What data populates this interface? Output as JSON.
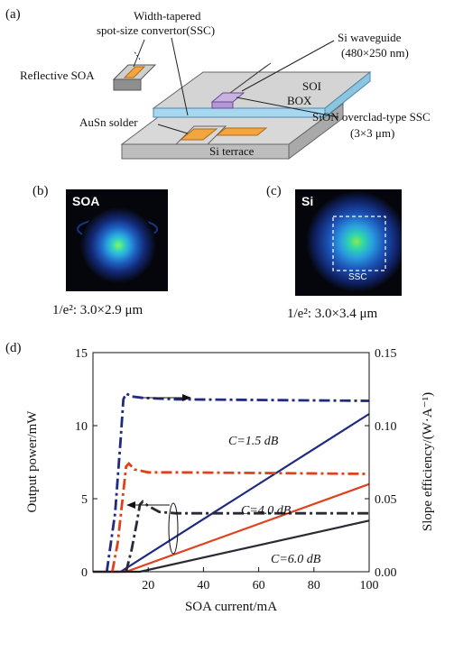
{
  "figure": {
    "panel_a": {
      "label": "(a)",
      "labels": {
        "ssc_top": "Width-tapered",
        "ssc_bottom": "spot-size convertor(SSC)",
        "soa": "Reflective SOA",
        "si_wg_top": "Si waveguide",
        "si_wg_bottom": "(480×250 nm)",
        "soi": "SOI",
        "box": "BOX",
        "sion_top": "SiON overclad-type SSC",
        "sion_bottom": "(3×3 μm)",
        "ausn": "AuSn solder",
        "terrace": "Si terrace"
      }
    },
    "panel_b": {
      "label": "(b)",
      "image_tag": "SOA",
      "caption": "1/e²: 3.0×2.9  μm"
    },
    "panel_c": {
      "label": "(c)",
      "image_tag": "Si",
      "box_tag": "SSC",
      "caption": "1/e²: 3.0×3.4  μm"
    },
    "panel_d": {
      "label": "(d)"
    }
  },
  "chart_data": {
    "type": "line",
    "xlabel": "SOA current/mA",
    "ylabel": "Output power/mW",
    "y2label": "Slope efficiency/(W·A⁻¹)",
    "xlim": [
      0,
      100
    ],
    "ylim": [
      0,
      15
    ],
    "y2lim": [
      0,
      0.15
    ],
    "x_ticks": [
      "20",
      "40",
      "60",
      "80",
      "100"
    ],
    "y_ticks": [
      "0",
      "5",
      "10",
      "15"
    ],
    "y2_ticks": [
      "0.00",
      "0.05",
      "0.10",
      "0.15"
    ],
    "annotations": [
      "C=1.5 dB",
      "C=4.0 dB",
      "C=6.0 dB"
    ],
    "colors": {
      "c15": "#1f2a80",
      "c40": "#e0401c",
      "c60": "#2a2a35"
    },
    "series": [
      {
        "key": "c15",
        "axis": "left",
        "style": "solid",
        "x": [
          0,
          10,
          100
        ],
        "y": [
          0,
          0,
          10.8
        ]
      },
      {
        "key": "c40",
        "axis": "left",
        "style": "solid",
        "x": [
          0,
          12,
          100
        ],
        "y": [
          0,
          0,
          6.0
        ]
      },
      {
        "key": "c60",
        "axis": "left",
        "style": "solid",
        "x": [
          0,
          17,
          100
        ],
        "y": [
          0,
          0,
          3.5
        ]
      },
      {
        "key": "c15",
        "axis": "right",
        "style": "dashdot",
        "x": [
          5,
          8,
          10,
          11,
          12,
          14,
          18,
          30,
          100
        ],
        "y": [
          0,
          0.04,
          0.09,
          0.118,
          0.122,
          0.12,
          0.119,
          0.118,
          0.117
        ]
      },
      {
        "key": "c40",
        "axis": "right",
        "style": "dashdot",
        "x": [
          7,
          9,
          11,
          12,
          13,
          15,
          20,
          30,
          100
        ],
        "y": [
          0,
          0.02,
          0.055,
          0.072,
          0.074,
          0.07,
          0.068,
          0.068,
          0.067
        ]
      },
      {
        "key": "c60",
        "axis": "right",
        "style": "dashdot",
        "x": [
          12,
          14,
          16,
          17,
          18,
          20,
          24,
          30,
          100
        ],
        "y": [
          0,
          0.015,
          0.035,
          0.046,
          0.048,
          0.045,
          0.041,
          0.04,
          0.04
        ]
      }
    ]
  }
}
